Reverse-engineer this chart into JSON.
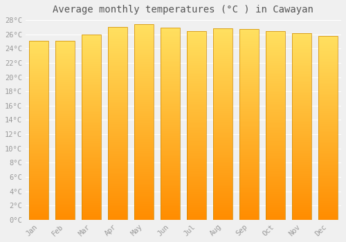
{
  "title": "Average monthly temperatures (°C ) in Cawayan",
  "months": [
    "Jan",
    "Feb",
    "Mar",
    "Apr",
    "May",
    "Jun",
    "Jul",
    "Aug",
    "Sep",
    "Oct",
    "Nov",
    "Dec"
  ],
  "values": [
    25.1,
    25.1,
    26.0,
    27.0,
    27.4,
    26.9,
    26.5,
    26.8,
    26.7,
    26.5,
    26.2,
    25.8
  ],
  "ylim": [
    0,
    28
  ],
  "yticks": [
    0,
    2,
    4,
    6,
    8,
    10,
    12,
    14,
    16,
    18,
    20,
    22,
    24,
    26,
    28
  ],
  "bar_color_top": "#FFDA5A",
  "bar_color_mid": "#FFA500",
  "bar_color_bottom": "#FF8C00",
  "bar_border_color": "#CC8800",
  "background_color": "#f0f0f0",
  "grid_color": "#ffffff",
  "title_fontsize": 10,
  "tick_fontsize": 7.5,
  "font_color": "#999999",
  "title_color": "#555555"
}
